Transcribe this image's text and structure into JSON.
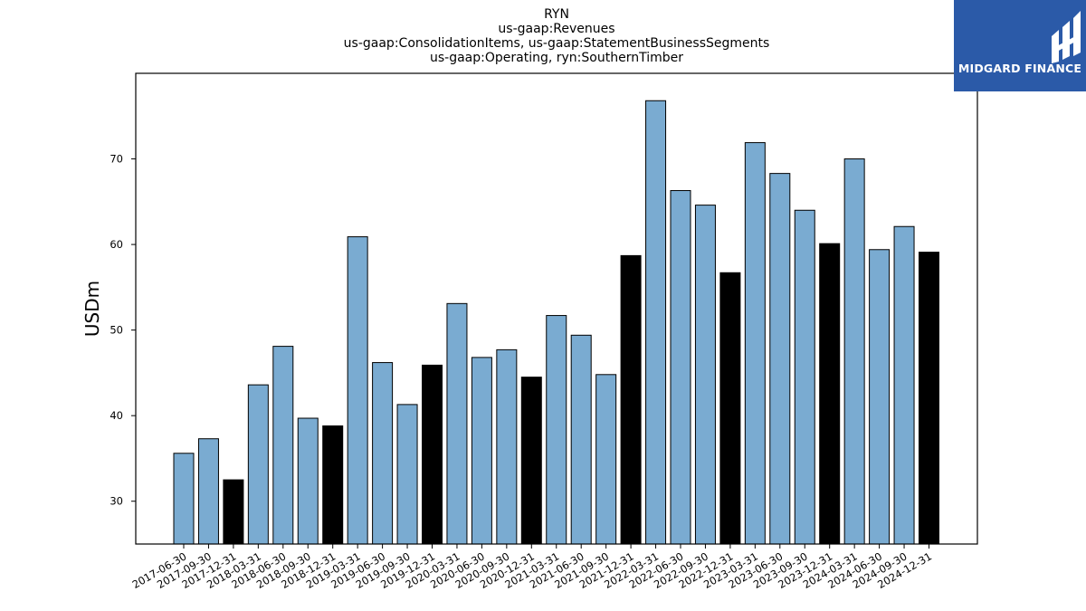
{
  "chart_data": {
    "type": "bar",
    "title_lines": [
      "RYN",
      "us-gaap:Revenues",
      "us-gaap:ConsolidationItems, us-gaap:StatementBusinessSegments",
      "us-gaap:Operating, ryn:SouthernTimber"
    ],
    "ylabel": "USDm",
    "xlabel": "",
    "ylim": [
      25,
      80
    ],
    "yticks": [
      30,
      40,
      50,
      60,
      70
    ],
    "grid": false,
    "colors": {
      "quarter": "#7aabd1",
      "year_end": "#000000",
      "edge": "#000000"
    },
    "categories": [
      "2017-06-30",
      "2017-09-30",
      "2017-12-31",
      "2018-03-31",
      "2018-06-30",
      "2018-09-30",
      "2018-12-31",
      "2019-03-31",
      "2019-06-30",
      "2019-09-30",
      "2019-12-31",
      "2020-03-31",
      "2020-06-30",
      "2020-09-30",
      "2020-12-31",
      "2021-03-31",
      "2021-06-30",
      "2021-09-30",
      "2021-12-31",
      "2022-03-31",
      "2022-06-30",
      "2022-09-30",
      "2022-12-31",
      "2023-03-31",
      "2023-06-30",
      "2023-09-30",
      "2023-12-31",
      "2024-03-31",
      "2024-06-30",
      "2024-09-30",
      "2024-12-31"
    ],
    "values": [
      35.6,
      37.3,
      32.5,
      43.6,
      48.1,
      39.7,
      38.8,
      60.9,
      46.2,
      41.3,
      45.9,
      53.1,
      46.8,
      47.7,
      44.5,
      51.7,
      49.4,
      44.8,
      58.7,
      76.8,
      66.3,
      64.6,
      56.7,
      71.9,
      68.3,
      64.0,
      60.1,
      70.0,
      59.4,
      62.1,
      59.1
    ]
  },
  "logo": {
    "text": "MIDGARD FINANCE",
    "icon": "midgard-logo-icon"
  }
}
